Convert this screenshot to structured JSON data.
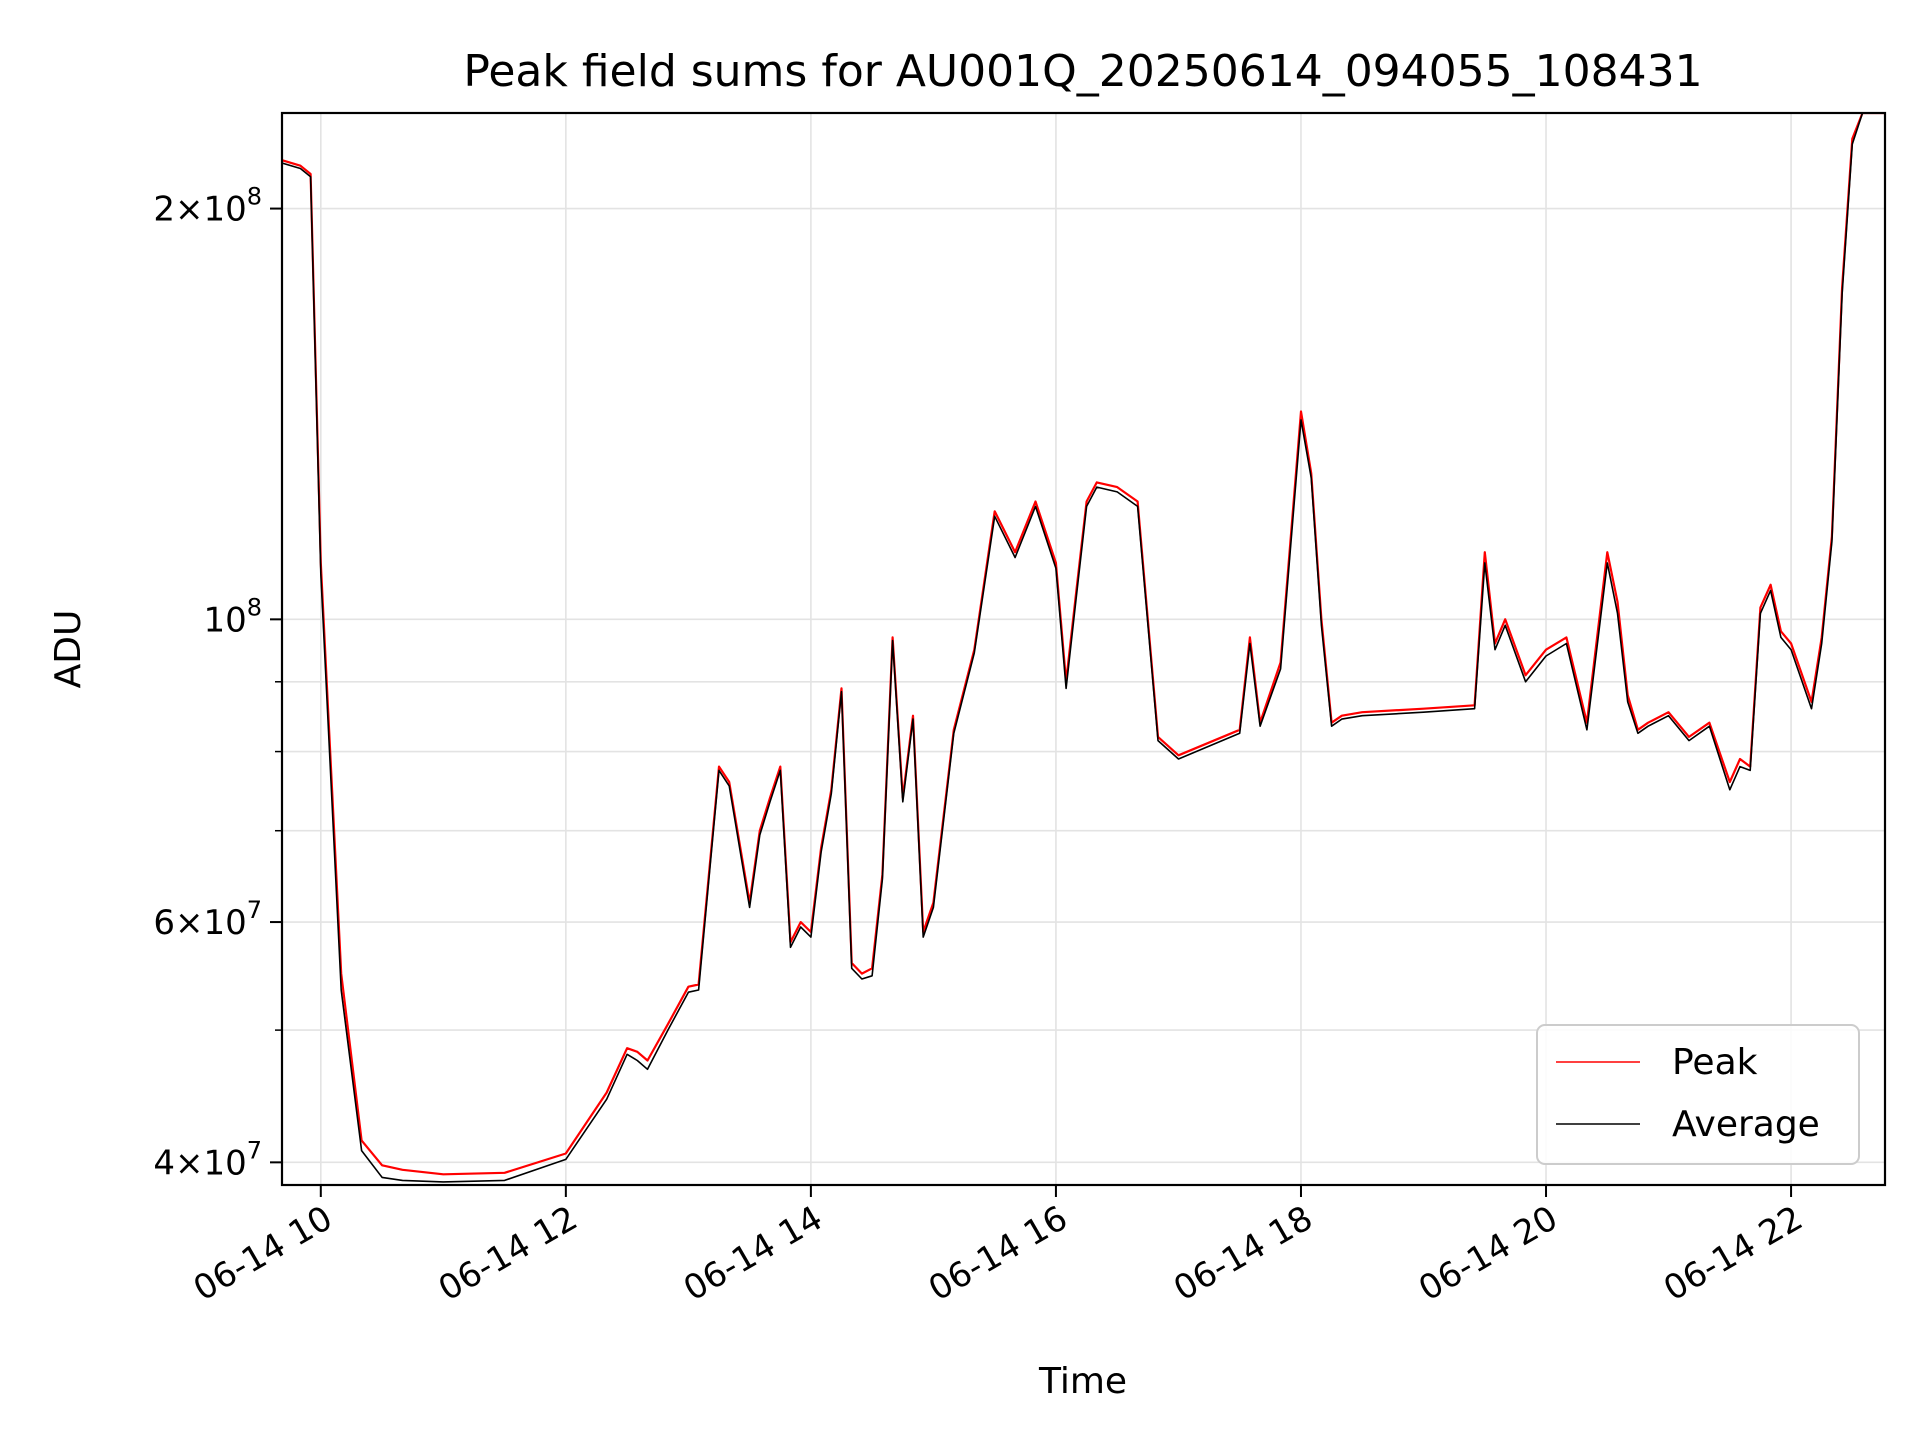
{
  "chart_data": {
    "type": "line",
    "title": "Peak field sums for AU001Q_20250614_094055_108431",
    "xlabel": "Time",
    "ylabel": "ADU",
    "yscale": "log",
    "xlim": [
      "2025-06-14 09:41",
      "2025-06-14 22:46"
    ],
    "ylim": [
      38500000,
      235000000
    ],
    "grid": true,
    "legend_position": "lower-right",
    "x_ticks": [
      {
        "t": "2025-06-14 10:00",
        "label": "06-14 10"
      },
      {
        "t": "2025-06-14 12:00",
        "label": "06-14 12"
      },
      {
        "t": "2025-06-14 14:00",
        "label": "06-14 14"
      },
      {
        "t": "2025-06-14 16:00",
        "label": "06-14 16"
      },
      {
        "t": "2025-06-14 18:00",
        "label": "06-14 18"
      },
      {
        "t": "2025-06-14 20:00",
        "label": "06-14 20"
      },
      {
        "t": "2025-06-14 22:00",
        "label": "06-14 22"
      }
    ],
    "y_ticks": [
      {
        "value": 40000000,
        "base": "4",
        "exp": "7"
      },
      {
        "value": 60000000,
        "base": "6",
        "exp": "7"
      },
      {
        "value": 100000000,
        "base": "",
        "exp": "8"
      },
      {
        "value": 200000000,
        "base": "2",
        "exp": "8"
      }
    ],
    "y_minor_ticks": [
      50000000,
      70000000,
      80000000,
      90000000
    ],
    "series": [
      {
        "name": "Peak",
        "color": "#ff0000",
        "x": [
          "2025-06-14 09:41",
          "2025-06-14 09:50",
          "2025-06-14 09:55",
          "2025-06-14 10:00",
          "2025-06-14 10:10",
          "2025-06-14 10:20",
          "2025-06-14 10:30",
          "2025-06-14 10:40",
          "2025-06-14 11:00",
          "2025-06-14 11:30",
          "2025-06-14 12:00",
          "2025-06-14 12:20",
          "2025-06-14 12:30",
          "2025-06-14 12:35",
          "2025-06-14 12:40",
          "2025-06-14 12:50",
          "2025-06-14 13:00",
          "2025-06-14 13:05",
          "2025-06-14 13:15",
          "2025-06-14 13:20",
          "2025-06-14 13:30",
          "2025-06-14 13:35",
          "2025-06-14 13:40",
          "2025-06-14 13:45",
          "2025-06-14 13:50",
          "2025-06-14 13:55",
          "2025-06-14 14:00",
          "2025-06-14 14:05",
          "2025-06-14 14:10",
          "2025-06-14 14:15",
          "2025-06-14 14:20",
          "2025-06-14 14:25",
          "2025-06-14 14:30",
          "2025-06-14 14:35",
          "2025-06-14 14:40",
          "2025-06-14 14:45",
          "2025-06-14 14:50",
          "2025-06-14 14:55",
          "2025-06-14 15:00",
          "2025-06-14 15:10",
          "2025-06-14 15:20",
          "2025-06-14 15:30",
          "2025-06-14 15:40",
          "2025-06-14 15:50",
          "2025-06-14 16:00",
          "2025-06-14 16:05",
          "2025-06-14 16:10",
          "2025-06-14 16:15",
          "2025-06-14 16:20",
          "2025-06-14 16:30",
          "2025-06-14 16:40",
          "2025-06-14 16:50",
          "2025-06-14 17:00",
          "2025-06-14 17:30",
          "2025-06-14 17:35",
          "2025-06-14 17:40",
          "2025-06-14 17:50",
          "2025-06-14 18:00",
          "2025-06-14 18:05",
          "2025-06-14 18:10",
          "2025-06-14 18:15",
          "2025-06-14 18:20",
          "2025-06-14 18:30",
          "2025-06-14 19:00",
          "2025-06-14 19:25",
          "2025-06-14 19:30",
          "2025-06-14 19:35",
          "2025-06-14 19:40",
          "2025-06-14 19:50",
          "2025-06-14 20:00",
          "2025-06-14 20:10",
          "2025-06-14 20:20",
          "2025-06-14 20:30",
          "2025-06-14 20:35",
          "2025-06-14 20:40",
          "2025-06-14 20:45",
          "2025-06-14 20:50",
          "2025-06-14 21:00",
          "2025-06-14 21:10",
          "2025-06-14 21:20",
          "2025-06-14 21:30",
          "2025-06-14 21:35",
          "2025-06-14 21:40",
          "2025-06-14 21:45",
          "2025-06-14 21:50",
          "2025-06-14 21:55",
          "2025-06-14 22:00",
          "2025-06-14 22:10",
          "2025-06-14 22:15",
          "2025-06-14 22:20",
          "2025-06-14 22:25",
          "2025-06-14 22:30",
          "2025-06-14 22:35",
          "2025-06-14 22:40",
          "2025-06-14 22:46"
        ],
        "values": [
          217000000,
          215000000,
          212000000,
          110000000,
          55000000,
          41500000,
          39800000,
          39500000,
          39200000,
          39300000,
          40600000,
          45000000,
          48500000,
          48200000,
          47500000,
          50500000,
          53800000,
          54000000,
          78000000,
          76000000,
          62000000,
          70000000,
          74000000,
          78000000,
          58000000,
          60000000,
          59000000,
          68000000,
          75000000,
          89000000,
          56000000,
          55000000,
          55500000,
          65000000,
          97000000,
          74000000,
          85000000,
          59000000,
          62000000,
          83000000,
          95000000,
          120000000,
          112000000,
          122000000,
          110000000,
          90000000,
          105000000,
          122000000,
          126000000,
          125000000,
          122000000,
          82000000,
          79500000,
          83000000,
          97000000,
          84000000,
          93000000,
          142000000,
          128000000,
          100000000,
          84000000,
          85000000,
          85500000,
          86000000,
          86500000,
          112000000,
          96000000,
          100000000,
          91000000,
          95000000,
          97000000,
          84000000,
          112000000,
          103000000,
          88000000,
          83000000,
          84000000,
          85500000,
          82000000,
          84000000,
          76000000,
          79000000,
          78000000,
          102000000,
          106000000,
          98000000,
          96000000,
          87000000,
          97000000,
          115000000,
          175000000,
          225000000,
          235000000,
          235000000,
          235000000
        ]
      },
      {
        "name": "Average",
        "color": "#000000",
        "x": [
          "2025-06-14 09:41",
          "2025-06-14 09:50",
          "2025-06-14 09:55",
          "2025-06-14 10:00",
          "2025-06-14 10:10",
          "2025-06-14 10:20",
          "2025-06-14 10:30",
          "2025-06-14 10:40",
          "2025-06-14 11:00",
          "2025-06-14 11:30",
          "2025-06-14 12:00",
          "2025-06-14 12:20",
          "2025-06-14 12:30",
          "2025-06-14 12:35",
          "2025-06-14 12:40",
          "2025-06-14 12:50",
          "2025-06-14 13:00",
          "2025-06-14 13:05",
          "2025-06-14 13:15",
          "2025-06-14 13:20",
          "2025-06-14 13:30",
          "2025-06-14 13:35",
          "2025-06-14 13:40",
          "2025-06-14 13:45",
          "2025-06-14 13:50",
          "2025-06-14 13:55",
          "2025-06-14 14:00",
          "2025-06-14 14:05",
          "2025-06-14 14:10",
          "2025-06-14 14:15",
          "2025-06-14 14:20",
          "2025-06-14 14:25",
          "2025-06-14 14:30",
          "2025-06-14 14:35",
          "2025-06-14 14:40",
          "2025-06-14 14:45",
          "2025-06-14 14:50",
          "2025-06-14 14:55",
          "2025-06-14 15:00",
          "2025-06-14 15:10",
          "2025-06-14 15:20",
          "2025-06-14 15:30",
          "2025-06-14 15:40",
          "2025-06-14 15:50",
          "2025-06-14 16:00",
          "2025-06-14 16:05",
          "2025-06-14 16:10",
          "2025-06-14 16:15",
          "2025-06-14 16:20",
          "2025-06-14 16:30",
          "2025-06-14 16:40",
          "2025-06-14 16:50",
          "2025-06-14 17:00",
          "2025-06-14 17:30",
          "2025-06-14 17:35",
          "2025-06-14 17:40",
          "2025-06-14 17:50",
          "2025-06-14 18:00",
          "2025-06-14 18:05",
          "2025-06-14 18:10",
          "2025-06-14 18:15",
          "2025-06-14 18:20",
          "2025-06-14 18:30",
          "2025-06-14 19:00",
          "2025-06-14 19:25",
          "2025-06-14 19:30",
          "2025-06-14 19:35",
          "2025-06-14 19:40",
          "2025-06-14 19:50",
          "2025-06-14 20:00",
          "2025-06-14 20:10",
          "2025-06-14 20:20",
          "2025-06-14 20:30",
          "2025-06-14 20:35",
          "2025-06-14 20:40",
          "2025-06-14 20:45",
          "2025-06-14 20:50",
          "2025-06-14 21:00",
          "2025-06-14 21:10",
          "2025-06-14 21:20",
          "2025-06-14 21:30",
          "2025-06-14 21:35",
          "2025-06-14 21:40",
          "2025-06-14 21:45",
          "2025-06-14 21:50",
          "2025-06-14 21:55",
          "2025-06-14 22:00",
          "2025-06-14 22:10",
          "2025-06-14 22:15",
          "2025-06-14 22:20",
          "2025-06-14 22:25",
          "2025-06-14 22:30",
          "2025-06-14 22:35",
          "2025-06-14 22:40",
          "2025-06-14 22:46"
        ],
        "values": [
          216000000,
          214000000,
          211000000,
          108000000,
          53500000,
          40800000,
          39000000,
          38800000,
          38700000,
          38800000,
          40200000,
          44500000,
          48000000,
          47500000,
          46800000,
          50000000,
          53300000,
          53500000,
          77500000,
          75500000,
          61500000,
          69500000,
          73500000,
          77500000,
          57500000,
          59500000,
          58500000,
          67500000,
          74500000,
          88500000,
          55500000,
          54500000,
          54800000,
          64500000,
          96500000,
          73500000,
          84500000,
          58500000,
          61500000,
          82500000,
          94500000,
          119000000,
          111000000,
          121000000,
          109000000,
          89000000,
          104000000,
          121000000,
          125000000,
          124000000,
          121000000,
          81500000,
          79000000,
          82500000,
          96000000,
          83500000,
          92000000,
          140000000,
          127000000,
          99000000,
          83500000,
          84500000,
          85000000,
          85500000,
          86000000,
          110000000,
          95000000,
          99000000,
          90000000,
          94000000,
          96000000,
          83000000,
          110000000,
          101000000,
          87000000,
          82500000,
          83500000,
          85000000,
          81500000,
          83500000,
          75000000,
          78000000,
          77500000,
          101000000,
          105000000,
          97000000,
          95000000,
          86000000,
          96000000,
          114000000,
          173000000,
          223000000,
          235000000,
          235000000,
          235000000
        ]
      }
    ]
  }
}
